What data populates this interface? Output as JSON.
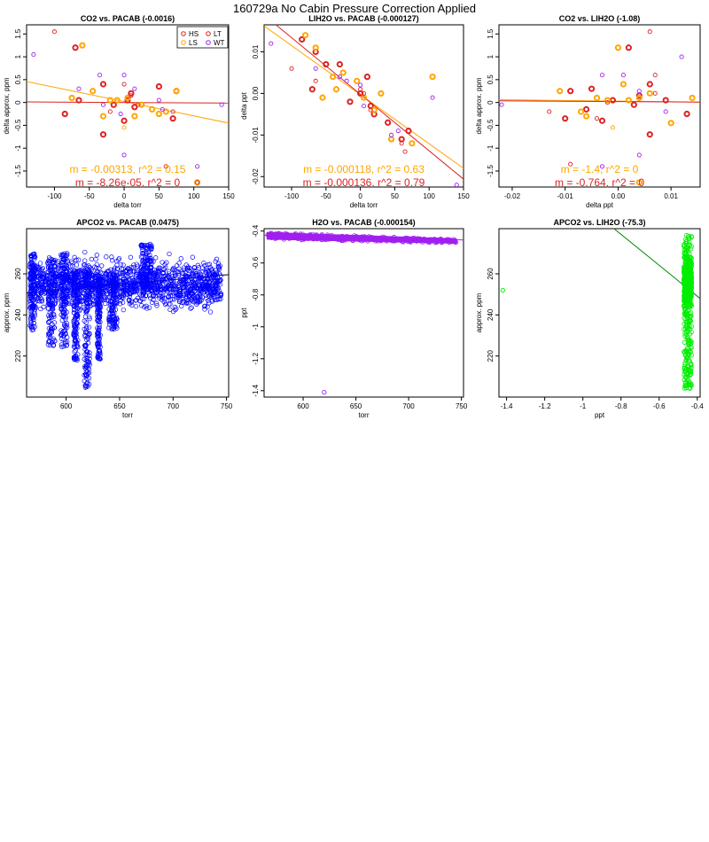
{
  "page": {
    "title": "160729a   No Cabin Pressure Correction Applied"
  },
  "colors": {
    "HS": "#dd2222",
    "LS": "#ffa500",
    "LT": "#dd2222",
    "WT": "#a020f0",
    "red": "#dd2222",
    "orange": "#ffa500",
    "blue": "#0000ff",
    "purple": "#a020f0",
    "green": "#00ee00",
    "darkgreen": "#008800"
  },
  "chart_data": [
    {
      "type": "scatter",
      "title": "CO2 vs. PACAB (-0.0016)",
      "xlabel": "delta torr",
      "ylabel": "delta approx. ppm",
      "xlim": [
        -140,
        150
      ],
      "ylim": [
        -1.85,
        1.7
      ],
      "xticks": [
        -100,
        -50,
        0,
        50,
        100,
        150
      ],
      "yticks": [
        -1.5,
        -1.0,
        -0.5,
        0.0,
        0.5,
        1.0,
        1.5
      ],
      "legend": {
        "position": "top-right",
        "entries": [
          {
            "label": "HS",
            "color": "#dd2222"
          },
          {
            "label": "LT",
            "color": "#dd2222"
          },
          {
            "label": "LS",
            "color": "#ffa500"
          },
          {
            "label": "WT",
            "color": "#a020f0"
          }
        ]
      },
      "series": [
        {
          "group": "HS",
          "color": "#dd2222",
          "bold": true,
          "x": [
            -70,
            -85,
            -65,
            -30,
            -30,
            -15,
            0,
            5,
            10,
            15,
            50,
            70,
            75
          ],
          "y": [
            1.2,
            -0.25,
            0.05,
            0.4,
            -0.7,
            -0.05,
            -0.4,
            0.05,
            0.2,
            -0.1,
            0.35,
            -0.35,
            0.25
          ]
        },
        {
          "group": "LS",
          "color": "#ffa500",
          "bold": true,
          "x": [
            -60,
            -45,
            -30,
            -75,
            -20,
            -10,
            5,
            15,
            25,
            40,
            50,
            60,
            75,
            105
          ],
          "y": [
            1.25,
            0.25,
            -0.3,
            0.1,
            0.05,
            0.05,
            0.1,
            -0.3,
            -0.05,
            -0.15,
            -0.25,
            -0.2,
            0.25,
            -1.75
          ]
        },
        {
          "group": "LT",
          "color": "#dd2222",
          "bold": false,
          "x": [
            -100,
            -20,
            0,
            10,
            20,
            60,
            70,
            105
          ],
          "y": [
            1.55,
            -0.2,
            0.4,
            0.15,
            -0.05,
            -1.4,
            -0.2,
            -1.75
          ]
        },
        {
          "group": "WT",
          "color": "#a020f0",
          "bold": false,
          "x": [
            -130,
            -65,
            -35,
            -30,
            -5,
            0,
            0,
            15,
            50,
            55,
            105,
            140
          ],
          "y": [
            1.05,
            0.3,
            0.6,
            -0.05,
            -0.25,
            0.6,
            -1.15,
            0.3,
            0.05,
            -0.15,
            -1.4,
            -0.05
          ]
        },
        {
          "group": "LS",
          "color": "#ffa500",
          "bold": false,
          "x": [
            0
          ],
          "y": [
            -0.55
          ]
        }
      ],
      "fits": [
        {
          "color": "#ffa500",
          "m": -0.00313,
          "b": 0.02
        },
        {
          "color": "#dd2222",
          "m": -8.26e-05,
          "b": 0.0
        }
      ],
      "annotations": [
        {
          "text": "m = -0.00313, r^2 = 0.15",
          "color": "#ffa500"
        },
        {
          "text": "m = -8.26e-05, r^2 = 0",
          "color": "#dd2222"
        }
      ]
    },
    {
      "type": "scatter",
      "title": "LIH2O vs. PACAB (-0.000127)",
      "xlabel": "delta torr",
      "ylabel": "delta ppt",
      "xlim": [
        -140,
        150
      ],
      "ylim": [
        -0.0225,
        0.0165
      ],
      "xticks": [
        -100,
        -50,
        0,
        50,
        100,
        150
      ],
      "yticks": [
        -0.02,
        -0.01,
        0.0,
        0.01
      ],
      "yticklabels": [
        "-0.02",
        "-0.01",
        "0.00",
        "0.01"
      ],
      "series": [
        {
          "group": "HS",
          "color": "#dd2222",
          "bold": true,
          "x": [
            -85,
            -70,
            -65,
            -50,
            -30,
            -15,
            0,
            10,
            15,
            20,
            40,
            60,
            70
          ],
          "y": [
            0.013,
            0.001,
            0.01,
            0.007,
            0.007,
            -0.002,
            0.0,
            0.004,
            -0.003,
            -0.005,
            -0.007,
            -0.011,
            -0.009
          ]
        },
        {
          "group": "LS",
          "color": "#ffa500",
          "bold": true,
          "x": [
            -80,
            -65,
            -55,
            -40,
            -35,
            -25,
            -5,
            5,
            20,
            30,
            45,
            75,
            105
          ],
          "y": [
            0.014,
            0.011,
            -0.001,
            0.004,
            0.001,
            0.005,
            0.003,
            -0.001,
            -0.004,
            0.0,
            -0.011,
            -0.012,
            0.004
          ]
        },
        {
          "group": "LT",
          "color": "#dd2222",
          "bold": false,
          "x": [
            -100,
            -65,
            0,
            5,
            15,
            60,
            65
          ],
          "y": [
            0.006,
            0.003,
            0.001,
            0.0,
            -0.004,
            -0.012,
            -0.014
          ]
        },
        {
          "group": "WT",
          "color": "#a020f0",
          "bold": false,
          "x": [
            -130,
            -65,
            -30,
            -20,
            0,
            5,
            45,
            55,
            105,
            140
          ],
          "y": [
            0.012,
            0.006,
            0.004,
            0.003,
            0.002,
            -0.003,
            -0.01,
            -0.009,
            -0.001,
            -0.022
          ]
        }
      ],
      "fits": [
        {
          "color": "#ffa500",
          "m": -0.000118,
          "b": -0.0003
        },
        {
          "color": "#dd2222",
          "m": -0.000136,
          "b": -0.0002
        }
      ],
      "annotations": [
        {
          "text": "m = -0.000118, r^2 = 0.63",
          "color": "#ffa500"
        },
        {
          "text": "m = -0.000136, r^2 = 0.79",
          "color": "#dd2222"
        }
      ]
    },
    {
      "type": "scatter",
      "title": "CO2 vs. LIH2O (-1.08)",
      "xlabel": "delta ppt",
      "ylabel": "delta approx. ppm",
      "xlim": [
        -0.0225,
        0.0155
      ],
      "ylim": [
        -1.85,
        1.7
      ],
      "xticks": [
        -0.02,
        -0.01,
        0.0,
        0.01
      ],
      "xticklabels": [
        "-0.02",
        "-0.01",
        "0.00",
        "0.01"
      ],
      "yticks": [
        -1.5,
        -1.0,
        -0.5,
        0.0,
        0.5,
        1.0,
        1.5
      ],
      "series": [
        {
          "group": "HS",
          "color": "#dd2222",
          "bold": true,
          "x": [
            0.002,
            -0.009,
            -0.01,
            -0.005,
            -0.006,
            -0.003,
            -0.001,
            0.003,
            0.004,
            0.006,
            0.006,
            0.009,
            0.013
          ],
          "y": [
            1.2,
            0.25,
            -0.35,
            0.3,
            -0.15,
            -0.4,
            0.05,
            -0.05,
            0.15,
            -0.7,
            0.4,
            0.05,
            -0.25
          ]
        },
        {
          "group": "LS",
          "color": "#ffa500",
          "bold": true,
          "x": [
            0.0,
            -0.011,
            -0.007,
            -0.006,
            -0.004,
            -0.002,
            0.001,
            0.002,
            0.004,
            0.006,
            0.01,
            0.014,
            0.004
          ],
          "y": [
            1.2,
            0.25,
            -0.2,
            -0.3,
            0.1,
            0.05,
            0.4,
            0.05,
            0.1,
            0.2,
            -0.45,
            0.1,
            -1.75
          ]
        },
        {
          "group": "LT",
          "color": "#dd2222",
          "bold": false,
          "x": [
            0.006,
            -0.013,
            -0.004,
            0.007,
            -0.002,
            -0.009,
            0.007
          ],
          "y": [
            1.55,
            -0.2,
            -0.35,
            0.6,
            0.0,
            -1.35,
            0.2
          ]
        },
        {
          "group": "WT",
          "color": "#a020f0",
          "bold": false,
          "x": [
            -0.022,
            0.012,
            0.001,
            -0.003,
            -0.003,
            0.004,
            0.004,
            0.009
          ],
          "y": [
            -0.05,
            1.0,
            0.6,
            0.6,
            -1.4,
            0.25,
            -1.15,
            -0.2
          ]
        },
        {
          "group": "LS",
          "color": "#ffa500",
          "bold": false,
          "x": [
            -0.001
          ],
          "y": [
            -0.55
          ]
        }
      ],
      "fits": [
        {
          "color": "#ffa500",
          "m": -1.4,
          "b": 0.03
        },
        {
          "color": "#dd2222",
          "m": -0.764,
          "b": 0.02
        }
      ],
      "annotations": [
        {
          "text": "m = -1.4, r^2 = 0",
          "color": "#ffa500"
        },
        {
          "text": "m = -0.764, r^2 = 0",
          "color": "#dd2222"
        }
      ]
    },
    {
      "type": "scatter",
      "title": "APCO2 vs. PACAB (0.0475)",
      "xlabel": "torr",
      "ylabel": "approx. ppm",
      "xlim": [
        563,
        752
      ],
      "ylim": [
        200,
        282
      ],
      "xticks": [
        600,
        650,
        700,
        750
      ],
      "yticks": [
        220,
        240,
        260
      ],
      "color": "#0000ff",
      "density": {
        "x_range": [
          566,
          745
        ],
        "center": 255,
        "spread": 6,
        "clusters": [
          {
            "x": [
              566,
              571
            ],
            "y": [
              232,
              270
            ]
          },
          {
            "x": [
              583,
              590
            ],
            "y": [
              225,
              268
            ]
          },
          {
            "x": [
              595,
              601
            ],
            "y": [
              224,
              270
            ]
          },
          {
            "x": [
              607,
              611
            ],
            "y": [
              218,
              262
            ]
          },
          {
            "x": [
              617,
              622
            ],
            "y": [
              204,
              262
            ]
          },
          {
            "x": [
              629,
              632
            ],
            "y": [
              218,
              258
            ]
          },
          {
            "x": [
              640,
              648
            ],
            "y": [
              233,
              260
            ]
          },
          {
            "x": [
              670,
              680
            ],
            "y": [
              252,
              276
            ]
          }
        ]
      },
      "fits": [
        {
          "color": "#000000",
          "m": 0.0475,
          "b": 223.9
        }
      ]
    },
    {
      "type": "scatter",
      "title": "H2O vs. PACAB (-0.000154)",
      "xlabel": "torr",
      "ylabel": "ppt",
      "xlim": [
        563,
        752
      ],
      "ylim": [
        -1.44,
        -0.385
      ],
      "xticks": [
        600,
        650,
        700,
        750
      ],
      "yticks": [
        -1.4,
        -1.2,
        -1.0,
        -0.8,
        -0.6,
        -0.4
      ],
      "color": "#a020f0",
      "band": {
        "x_range": [
          566,
          745
        ],
        "y_top": [
          -0.41,
          -0.45
        ],
        "y_bottom": [
          -0.45,
          -0.475
        ]
      },
      "outliers": [
        {
          "x": 620,
          "y": -1.41
        }
      ],
      "fits": [
        {
          "color": "#a020f0",
          "m": -0.000154,
          "b": -0.34
        }
      ]
    },
    {
      "type": "scatter",
      "title": "APCO2 vs. LIH2O (-75.3)",
      "xlabel": "ppt",
      "ylabel": "approx. ppm",
      "xlim": [
        -1.44,
        -0.385
      ],
      "ylim": [
        200,
        282
      ],
      "xticks": [
        -1.4,
        -1.2,
        -1.0,
        -0.8,
        -0.6,
        -0.4
      ],
      "yticks": [
        220,
        240,
        260
      ],
      "color": "#00ee00",
      "column": {
        "x_range": [
          -0.47,
          -0.43
        ],
        "y_range": [
          204,
          279
        ]
      },
      "outliers": [
        {
          "x": -1.42,
          "y": 252
        }
      ],
      "fits": [
        {
          "color": "#008800",
          "m": -75.3,
          "b": 219
        }
      ]
    }
  ]
}
